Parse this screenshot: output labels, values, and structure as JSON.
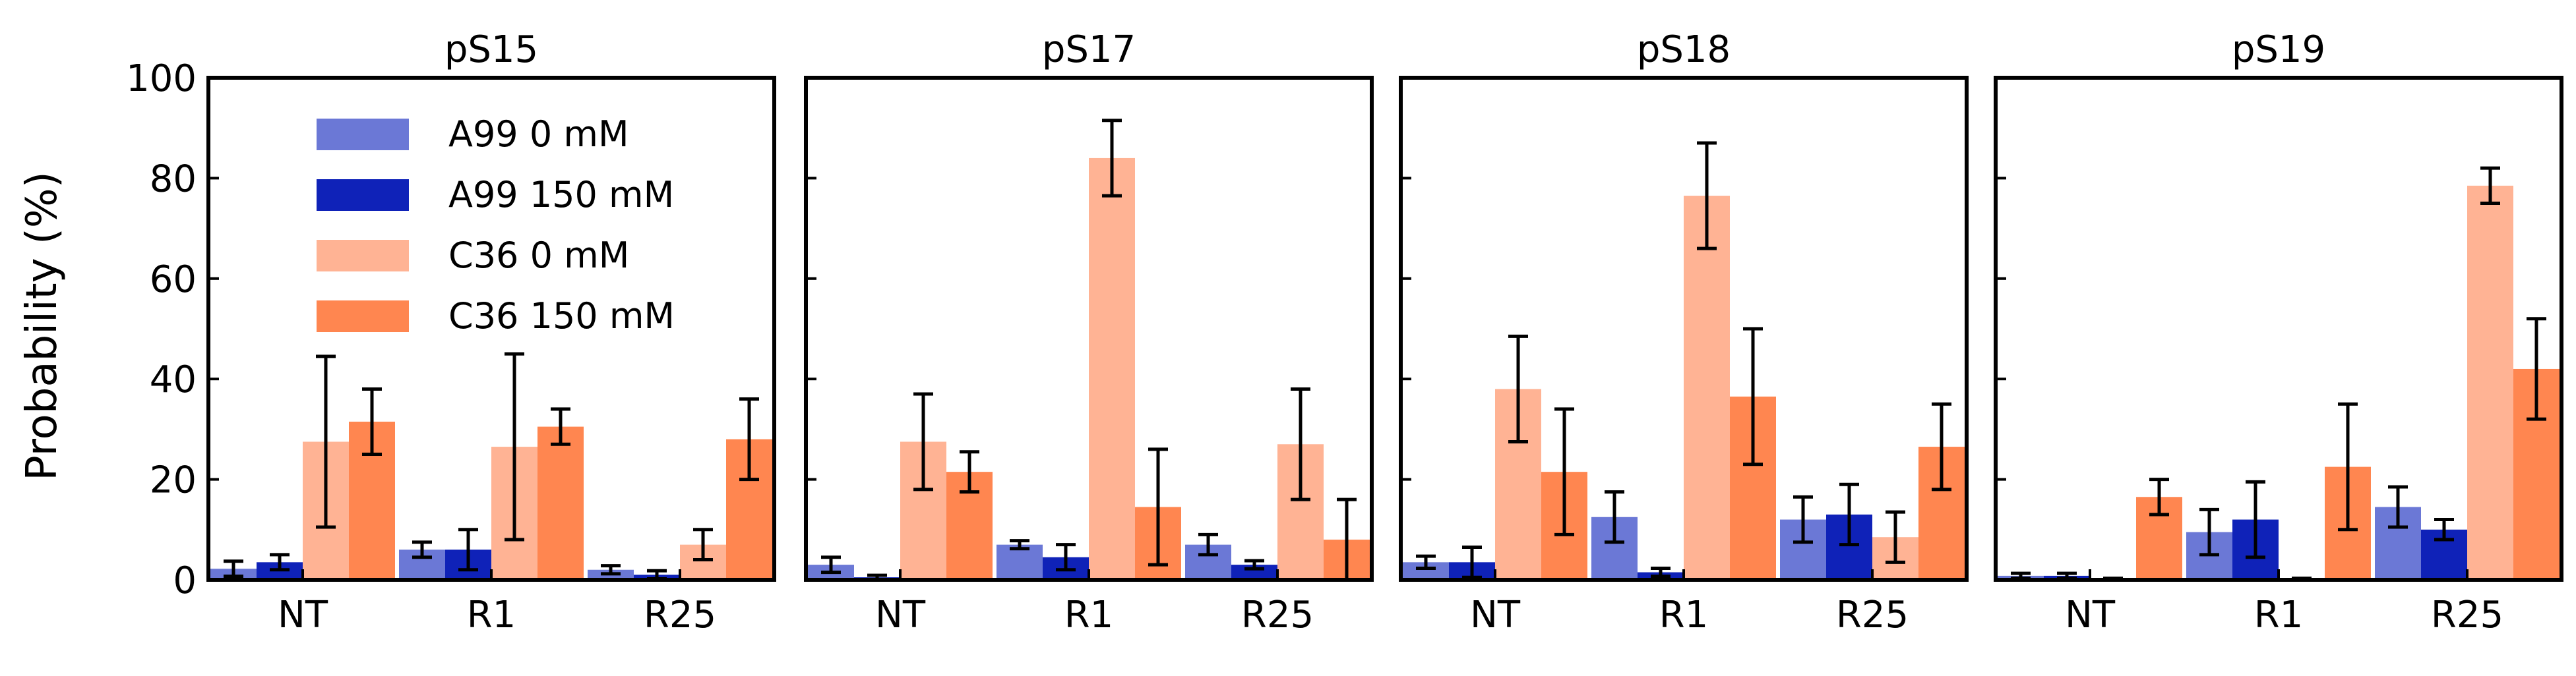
{
  "chart_data": {
    "type": "bar",
    "ylabel": "Probability (%)",
    "ylim": [
      0,
      100
    ],
    "yticks": [
      "0",
      "20",
      "40",
      "60",
      "80",
      "100"
    ],
    "categories": [
      "NT",
      "R1",
      "R25"
    ],
    "legend": {
      "placement": "upper-left of first panel",
      "entries": [
        "A99 0 mM",
        "A99 150 mM",
        "C36 0 mM",
        "C36 150 mM"
      ]
    },
    "series_colors": [
      "#6b78d6",
      "#0f22b8",
      "#ffb394",
      "#ff8650"
    ],
    "panels": [
      {
        "title": "pS15",
        "series": [
          {
            "name": "A99 0 mM",
            "values": [
              2.2,
              6.0,
              2.0
            ],
            "errors": [
              1.5,
              1.5,
              0.8
            ]
          },
          {
            "name": "A99 150 mM",
            "values": [
              3.5,
              6.0,
              1.0
            ],
            "errors": [
              1.5,
              4.0,
              0.8
            ]
          },
          {
            "name": "C36 0 mM",
            "values": [
              27.5,
              26.5,
              7.0
            ],
            "errors": [
              17.0,
              18.5,
              3.0
            ]
          },
          {
            "name": "C36 150 mM",
            "values": [
              31.5,
              30.5,
              28.0
            ],
            "errors": [
              6.5,
              3.5,
              8.0
            ]
          }
        ]
      },
      {
        "title": "pS17",
        "series": [
          {
            "name": "A99 0 mM",
            "values": [
              3.0,
              7.0,
              7.0
            ],
            "errors": [
              1.5,
              0.8,
              2.0
            ]
          },
          {
            "name": "A99 150 mM",
            "values": [
              0.5,
              4.5,
              3.0
            ],
            "errors": [
              0.4,
              2.5,
              0.8
            ]
          },
          {
            "name": "C36 0 mM",
            "values": [
              27.5,
              84.0,
              27.0
            ],
            "errors": [
              9.5,
              7.5,
              11.0
            ]
          },
          {
            "name": "C36 150 mM",
            "values": [
              21.5,
              14.5,
              8.0
            ],
            "errors": [
              4.0,
              11.5,
              8.0
            ]
          }
        ]
      },
      {
        "title": "pS18",
        "series": [
          {
            "name": "A99 0 mM",
            "values": [
              3.5,
              12.5,
              12.0
            ],
            "errors": [
              1.2,
              5.0,
              4.5
            ]
          },
          {
            "name": "A99 150 mM",
            "values": [
              3.5,
              1.5,
              13.0
            ],
            "errors": [
              3.0,
              0.8,
              6.0
            ]
          },
          {
            "name": "C36 0 mM",
            "values": [
              38.0,
              76.5,
              8.5
            ],
            "errors": [
              10.5,
              10.5,
              5.0
            ]
          },
          {
            "name": "C36 150 mM",
            "values": [
              21.5,
              36.5,
              26.5
            ],
            "errors": [
              12.5,
              13.5,
              8.5
            ]
          }
        ]
      },
      {
        "title": "pS19",
        "series": [
          {
            "name": "A99 0 mM",
            "values": [
              0.8,
              9.5,
              14.5
            ],
            "errors": [
              0.5,
              4.5,
              4.0
            ]
          },
          {
            "name": "A99 150 mM",
            "values": [
              0.8,
              12.0,
              10.0
            ],
            "errors": [
              0.5,
              7.5,
              2.0
            ]
          },
          {
            "name": "C36 0 mM",
            "values": [
              0.2,
              0.2,
              78.5
            ],
            "errors": [
              0.1,
              0.1,
              3.5
            ]
          },
          {
            "name": "C36 150 mM",
            "values": [
              16.5,
              22.5,
              42.0
            ],
            "errors": [
              3.5,
              12.5,
              10.0
            ]
          }
        ]
      }
    ]
  }
}
